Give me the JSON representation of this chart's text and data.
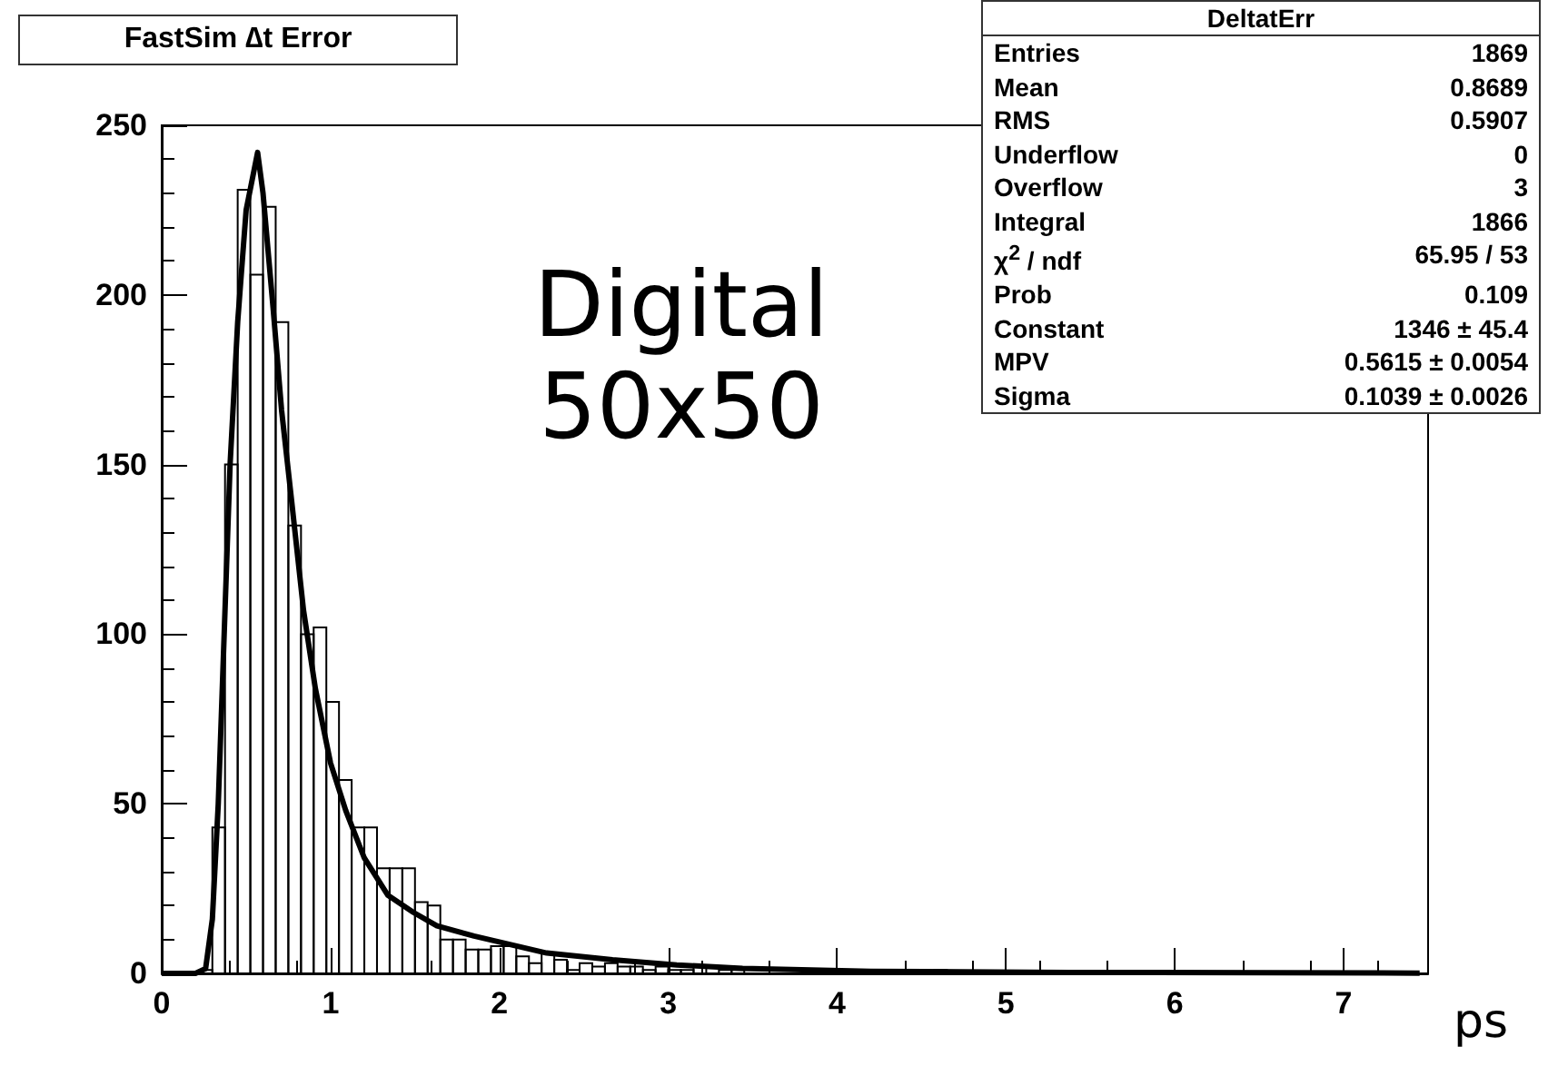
{
  "chart_data": {
    "type": "histogram",
    "title": "FastSim ∆t Error",
    "bins": [
      0,
      0.075,
      0.15,
      0.225,
      0.3,
      0.375,
      0.45,
      0.525,
      0.6,
      0.675,
      0.75,
      0.825,
      0.9,
      0.975,
      1.05,
      1.125,
      1.2,
      1.275,
      1.35,
      1.425,
      1.5,
      1.575,
      1.65,
      1.725,
      1.8,
      1.875,
      1.95,
      2.025,
      2.1,
      2.175,
      2.25,
      2.325,
      2.4,
      2.475,
      2.55,
      2.625,
      2.7,
      2.775,
      2.85,
      2.925,
      3,
      3.075,
      3.15,
      3.225,
      3.3,
      3.375,
      3.45,
      3.525,
      3.6,
      3.675,
      3.75,
      3.825,
      3.9,
      3.975,
      4.05,
      4.125,
      4.2,
      4.275,
      4.35,
      4.425,
      4.5,
      4.575,
      4.65,
      4.725,
      4.8,
      4.875,
      4.95,
      5.025,
      5.1,
      5.175,
      5.25,
      5.325,
      5.4,
      5.475,
      5.55,
      5.625,
      5.7,
      5.775,
      5.85,
      5.925,
      6,
      6.075,
      6.15,
      6.225,
      6.3,
      6.375,
      6.45,
      6.525,
      6.6,
      6.675,
      6.75,
      6.825,
      6.9,
      6.975,
      7.05,
      7.125,
      7.2,
      7.275,
      7.35,
      7.425,
      7.5
    ],
    "values": [
      0,
      0,
      0,
      1,
      43,
      150,
      231,
      206,
      226,
      192,
      132,
      100,
      102,
      80,
      57,
      43,
      43,
      31,
      31,
      31,
      21,
      20,
      10,
      10,
      7,
      7,
      8,
      8,
      5,
      3,
      6,
      4,
      1,
      3,
      2,
      3,
      2,
      2,
      1,
      2,
      1,
      1,
      2,
      0,
      1,
      1,
      0,
      null,
      0,
      null,
      0,
      0,
      0,
      0,
      0,
      0,
      0,
      0,
      0,
      0,
      0,
      1,
      0,
      0,
      0,
      0,
      0,
      0,
      0,
      0,
      0,
      0,
      0,
      0,
      0,
      0,
      0,
      0,
      0,
      0,
      0,
      0,
      0,
      0,
      0,
      0,
      0,
      0,
      0,
      0,
      0,
      0,
      0,
      0,
      0,
      0,
      0,
      0,
      0,
      0
    ],
    "color": "#000000",
    "series": [
      {
        "type": "line",
        "color": "#000000",
        "x": [
          0,
          0.2,
          0.26,
          0.3,
          0.335,
          0.37,
          0.405,
          0.45,
          0.5,
          0.568,
          0.6,
          0.66,
          0.71,
          0.77,
          0.84,
          0.91,
          1,
          1.09,
          1.2,
          1.34,
          1.49,
          1.63,
          1.85,
          2.28,
          2.67,
          3.05,
          3.44,
          4.2,
          5.37,
          7.45
        ],
        "values": [
          0,
          0,
          1.4,
          16,
          50,
          100,
          150,
          192,
          225,
          242,
          230,
          196,
          166,
          139,
          107,
          84,
          62,
          48,
          34,
          23,
          18,
          14,
          11,
          6,
          4,
          2.5,
          1.5,
          0.6,
          0.3,
          0.1
        ]
      }
    ],
    "xlim": [
      0,
      7.5
    ],
    "xticks": [
      0,
      1,
      2,
      3,
      4,
      5,
      6,
      7
    ],
    "ylim": [
      0,
      250
    ],
    "yticks": [
      0,
      50,
      100,
      150,
      200,
      250
    ],
    "grid": false,
    "marker": "none",
    "line_style": "solid",
    "annotations": [
      "DeltatErr",
      "Entries\t1869",
      "Mean\t0.8689",
      "RMS\t0.5907",
      "Underflow\t0",
      "Overflow\t3",
      "Integral\t1866",
      "χ$^{2}$ / ndf\t65.95 / 53",
      "Prob\t0.109",
      "Constant\t1346 ± 45.4",
      "MPV\t0.5615 ± 0.0054",
      "Sigma\t0.1039 ± 0.0026",
      "Digital 50x50",
      "ps"
    ]
  }
}
